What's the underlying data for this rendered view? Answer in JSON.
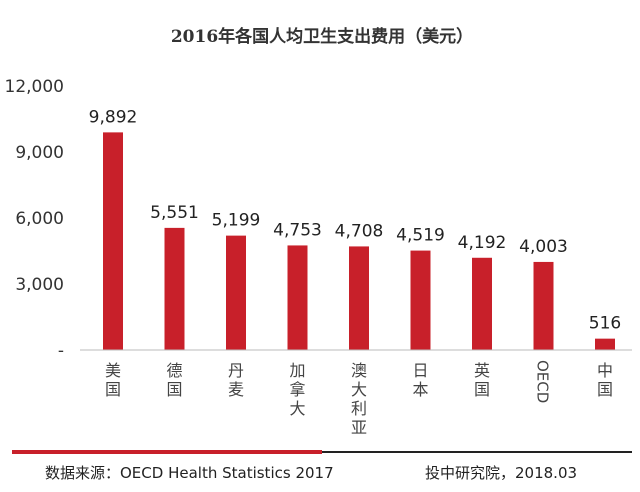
{
  "chart_data": {
    "type": "bar",
    "title": "2016年各国人均卫生支出费用（美元）",
    "categories": [
      "美国",
      "德国",
      "丹麦",
      "加拿大",
      "澳大利亚",
      "日本",
      "英国",
      "OECD",
      "中国"
    ],
    "values": [
      9892,
      5551,
      5199,
      4753,
      4708,
      4519,
      4192,
      4003,
      516
    ],
    "data_labels": [
      "9,892",
      "5,551",
      "5,199",
      "4,753",
      "4,708",
      "4,519",
      "4,192",
      "4,003",
      "516"
    ],
    "ylim": [
      0,
      12000
    ],
    "yticks": [
      "-",
      "3,000",
      "6,000",
      "9,000",
      "12,000"
    ],
    "ytick_values": [
      0,
      3000,
      6000,
      9000,
      12000
    ],
    "grid": false,
    "bar_color": "#c8202a"
  },
  "footer": {
    "source": "数据来源：OECD Health Statistics 2017",
    "institution": "投中研究院，2018.03"
  },
  "colors": {
    "accent_red": "#c8202a",
    "rule_black": "#222222"
  }
}
